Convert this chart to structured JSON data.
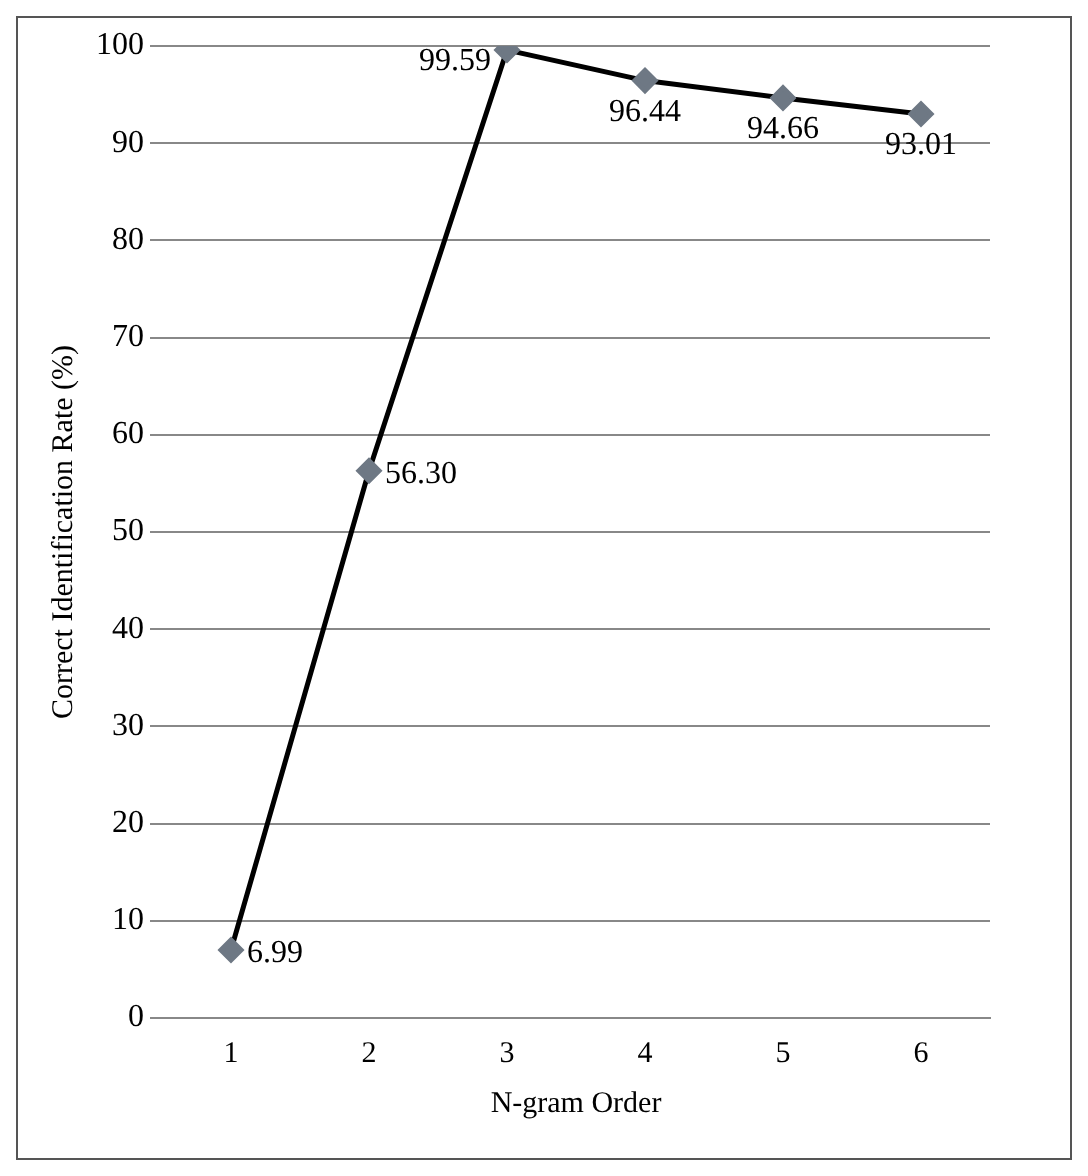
{
  "chart_data": {
    "type": "line",
    "xlabel": "N-gram Order",
    "ylabel": "Correct Identification Rate (%)",
    "categories": [
      "1",
      "2",
      "3",
      "4",
      "5",
      "6"
    ],
    "series": [
      {
        "color": "#000000",
        "values": [
          6.99,
          56.3,
          99.59,
          96.44,
          94.66,
          93.01
        ],
        "value_labels": [
          "6.99",
          "56.30",
          "99.59",
          "96.44",
          "94.66",
          "93.01"
        ]
      }
    ],
    "ylim": [
      0,
      100
    ],
    "yticks": [
      0,
      10,
      20,
      30,
      40,
      50,
      60,
      70,
      80,
      90,
      100
    ],
    "grid": "y",
    "marker": "diamond",
    "line_style": "solid",
    "legend": false
  }
}
